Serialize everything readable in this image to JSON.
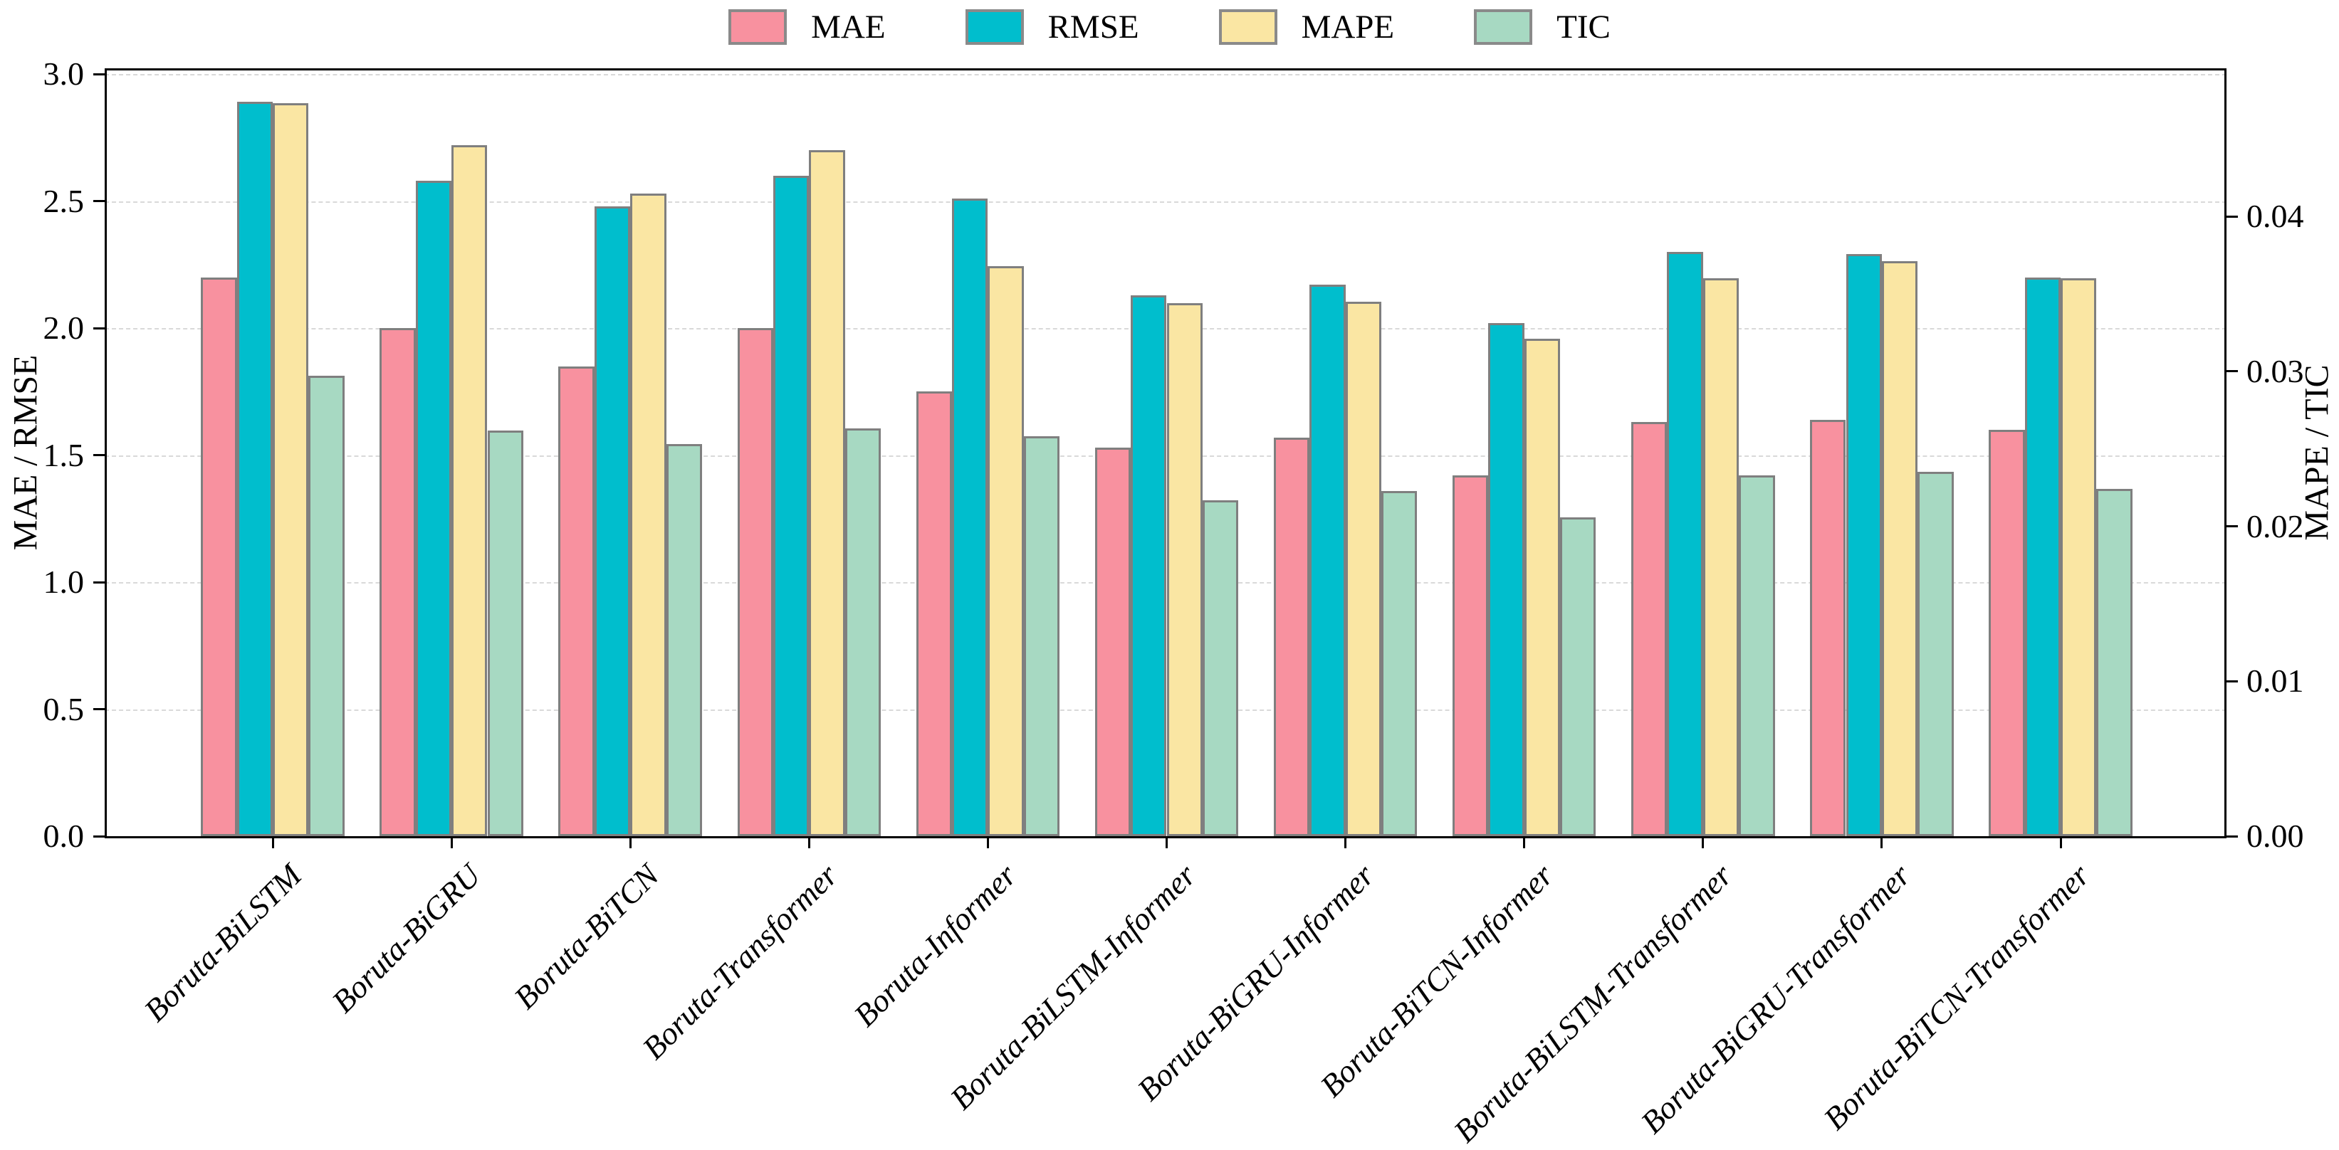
{
  "chart_data": {
    "type": "bar",
    "title": "",
    "categories": [
      "Boruta-BiLSTM",
      "Boruta-BiGRU",
      "Boruta-BiTCN",
      "Boruta-Transformer",
      "Boruta-Informer",
      "Boruta-BiLSTM-Informer",
      "Boruta-BiGRU-Informer",
      "Boruta-BiTCN-Informer",
      "Boruta-BiLSTM-Transformer",
      "Boruta-BiGRU-Transformer",
      "Boruta-BiTCN-Transformer"
    ],
    "series": [
      {
        "name": "MAE",
        "axis": "left",
        "color": "#F8919F",
        "values": [
          2.2,
          2.0,
          1.85,
          2.0,
          1.75,
          1.53,
          1.57,
          1.42,
          1.63,
          1.64,
          1.6
        ]
      },
      {
        "name": "RMSE",
        "axis": "left",
        "color": "#00BECD",
        "values": [
          2.89,
          2.58,
          2.48,
          2.6,
          2.51,
          2.13,
          2.17,
          2.02,
          2.3,
          2.29,
          2.2
        ]
      },
      {
        "name": "MAPE",
        "axis": "right",
        "color": "#FAE6A3",
        "values": [
          0.0473,
          0.0446,
          0.0415,
          0.0443,
          0.0368,
          0.0344,
          0.0345,
          0.0321,
          0.036,
          0.0371,
          0.036
        ]
      },
      {
        "name": "TIC",
        "axis": "right",
        "color": "#A7D9C2",
        "values": [
          0.0297,
          0.0262,
          0.0253,
          0.0263,
          0.0258,
          0.0217,
          0.0223,
          0.0206,
          0.0233,
          0.0235,
          0.0224
        ]
      }
    ],
    "ylabel_left": "MAE / RMSE",
    "ylabel_right": "MAPE / TIC",
    "ylim_left": [
      0,
      3.0
    ],
    "ylim_right": [
      0,
      0.0492
    ],
    "yticks_left": [
      "0.0",
      "0.5",
      "1.0",
      "1.5",
      "2.0",
      "2.5",
      "3.0"
    ],
    "yticks_right": [
      "0.00",
      "0.01",
      "0.02",
      "0.03",
      "0.04"
    ],
    "gridlines": "horizontal-dashed-at-left-ticks",
    "legend_position": "top-center",
    "legend_labels": [
      "MAE",
      "RMSE",
      "MAPE",
      "TIC"
    ],
    "bar_edge_color": "#7f7f7f",
    "grid_color": "#d9d9d9"
  }
}
